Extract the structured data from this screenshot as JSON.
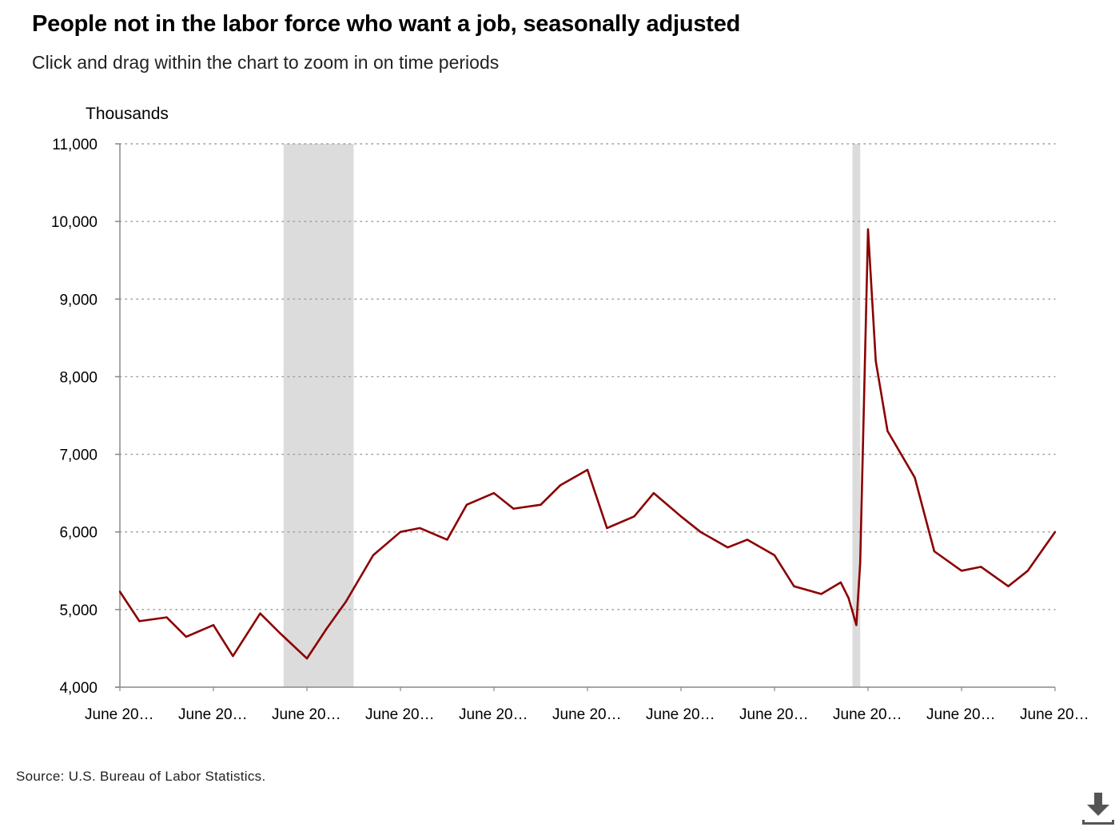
{
  "header": {
    "title": "People not in the labor force who want a job, seasonally adjusted",
    "subtitle": "Click and drag within the chart to zoom in on time periods"
  },
  "footer": {
    "source": "Source: U.S. Bureau of Labor Statistics."
  },
  "download": {
    "icon": "download-icon"
  },
  "colors": {
    "series": "#8b0000",
    "recession": "#dcdcdc",
    "grid": "#999999",
    "axis": "#888888"
  },
  "chart_data": {
    "type": "line",
    "ylabel": "Thousands",
    "ylim": [
      4000,
      11000
    ],
    "yticks": [
      4000,
      5000,
      6000,
      7000,
      8000,
      9000,
      10000,
      11000
    ],
    "ytick_labels": [
      "4,000",
      "5,000",
      "6,000",
      "7,000",
      "8,000",
      "9,000",
      "10,000",
      "11,000"
    ],
    "x_range": [
      "2004-06",
      "2024-06"
    ],
    "xticks": [
      "2004-06",
      "2006-06",
      "2008-06",
      "2010-06",
      "2012-06",
      "2014-06",
      "2016-06",
      "2018-06",
      "2020-06",
      "2022-06",
      "2024-06"
    ],
    "xtick_labels": [
      "June 20…",
      "June 20…",
      "June 20…",
      "June 20…",
      "June 20…",
      "June 20…",
      "June 20…",
      "June 20…",
      "June 20…",
      "June 20…",
      "June 20…"
    ],
    "grid": "horizontal dotted",
    "recessions": [
      {
        "start": "2007-12",
        "end": "2009-06"
      },
      {
        "start": "2020-02",
        "end": "2020-04"
      }
    ],
    "series": [
      {
        "x": [
          "2004-06",
          "2004-11",
          "2005-06",
          "2005-11",
          "2006-06",
          "2006-11",
          "2007-06",
          "2007-11",
          "2008-06",
          "2008-11",
          "2009-04",
          "2009-11",
          "2010-06",
          "2010-11",
          "2011-06",
          "2011-11",
          "2012-06",
          "2012-11",
          "2013-06",
          "2013-11",
          "2014-06",
          "2014-11",
          "2015-06",
          "2015-11",
          "2016-06",
          "2016-11",
          "2017-06",
          "2017-11",
          "2018-06",
          "2018-11",
          "2019-06",
          "2019-11",
          "2020-01",
          "2020-03",
          "2020-04",
          "2020-06",
          "2020-08",
          "2020-11",
          "2021-06",
          "2021-11",
          "2022-06",
          "2022-11",
          "2023-06",
          "2023-11",
          "2024-06"
        ],
        "values": [
          5230,
          4850,
          4900,
          4650,
          4800,
          4400,
          4950,
          4700,
          4370,
          4750,
          5100,
          5700,
          6000,
          6050,
          5900,
          6350,
          6500,
          6300,
          6350,
          6600,
          6800,
          6050,
          6200,
          6500,
          6200,
          6000,
          5800,
          5900,
          5700,
          5300,
          5200,
          5350,
          5150,
          4800,
          5600,
          9900,
          8200,
          7300,
          6700,
          5750,
          5500,
          5550,
          5300,
          5500,
          6000
        ]
      }
    ]
  }
}
